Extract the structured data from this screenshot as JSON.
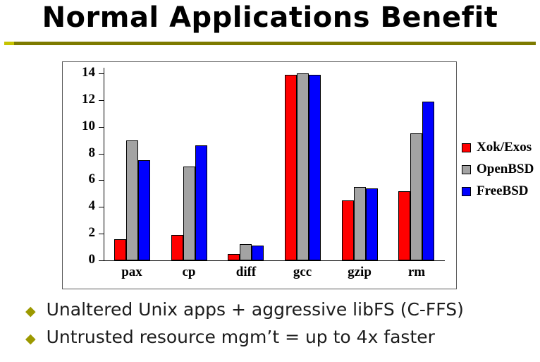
{
  "slide": {
    "title": "Normal Applications Benefit",
    "bullet_glyph": "◆",
    "bullets": [
      "Unaltered Unix apps + aggressive libFS (C-FFS)",
      "Untrusted resource mgm’t = up to 4x faster"
    ],
    "accent_color": "#7d7a00"
  },
  "chart_data": {
    "type": "bar",
    "title": "",
    "categories": [
      "pax",
      "cp",
      "diff",
      "gcc",
      "gzip",
      "rm"
    ],
    "series": [
      {
        "name": "Xok/Exos",
        "color": "#ff0000",
        "values": [
          1.6,
          1.9,
          0.5,
          13.9,
          4.5,
          5.2
        ]
      },
      {
        "name": "OpenBSD",
        "color": "#a3a3a3",
        "values": [
          9.0,
          7.0,
          1.2,
          14.0,
          5.5,
          9.5
        ]
      },
      {
        "name": "FreeBSD",
        "color": "#0000ff",
        "values": [
          7.5,
          8.6,
          1.1,
          13.9,
          5.4,
          11.9
        ]
      }
    ],
    "xlabel": "",
    "ylabel": "",
    "ylim": [
      0,
      14
    ],
    "yticks": [
      0,
      2,
      4,
      6,
      8,
      10,
      12,
      14
    ],
    "grid": false,
    "legend_position": "right",
    "bar_border_color": "#000000"
  }
}
